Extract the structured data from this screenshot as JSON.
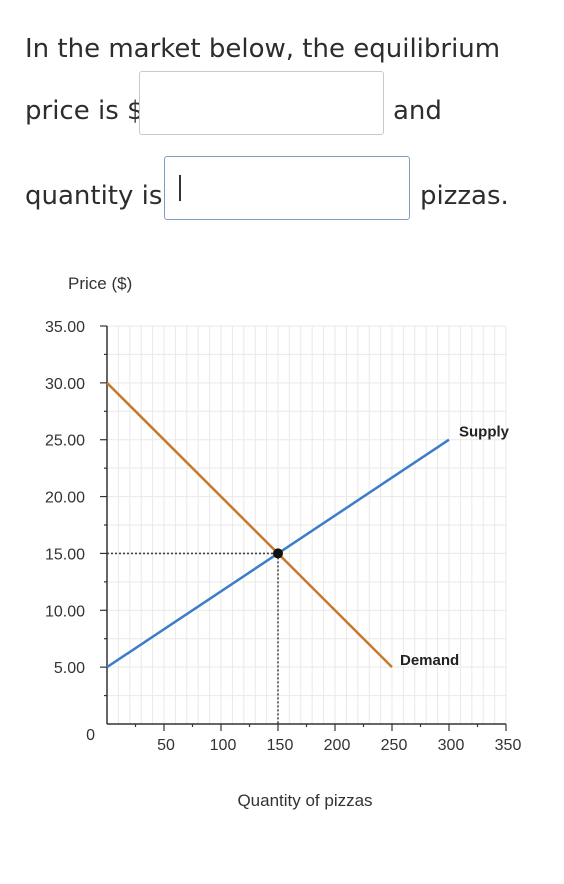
{
  "question": {
    "line1": "In the market below, the equilibrium",
    "line2_prefix": "price is $",
    "line2_suffix": "and",
    "line3_prefix": "quantity is",
    "line3_suffix": "pizzas.",
    "price_value": "",
    "quantity_value": ""
  },
  "chart_data": {
    "type": "line",
    "ylabel": "Price ($)",
    "xlabel": "Quantity of pizzas",
    "xlim": [
      0,
      350
    ],
    "ylim": [
      0,
      35
    ],
    "x_ticks": [
      50,
      100,
      150,
      200,
      250,
      300,
      350
    ],
    "x_tick_labels": [
      "50",
      "100",
      "150",
      "200",
      "250",
      "300",
      "350"
    ],
    "y_ticks": [
      5,
      10,
      15,
      20,
      25,
      30,
      35
    ],
    "y_tick_labels": [
      "5.00",
      "10.00",
      "15.00",
      "20.00",
      "25.00",
      "30.00",
      "35.00"
    ],
    "origin_label": "0",
    "grid": true,
    "series": [
      {
        "name": "Supply",
        "color": "#3d7cc9",
        "points": [
          [
            0,
            5
          ],
          [
            300,
            25
          ]
        ]
      },
      {
        "name": "Demand",
        "color": "#c7782c",
        "points": [
          [
            0,
            30
          ],
          [
            250,
            5
          ]
        ]
      }
    ],
    "equilibrium": {
      "x": 150,
      "y": 15
    }
  }
}
